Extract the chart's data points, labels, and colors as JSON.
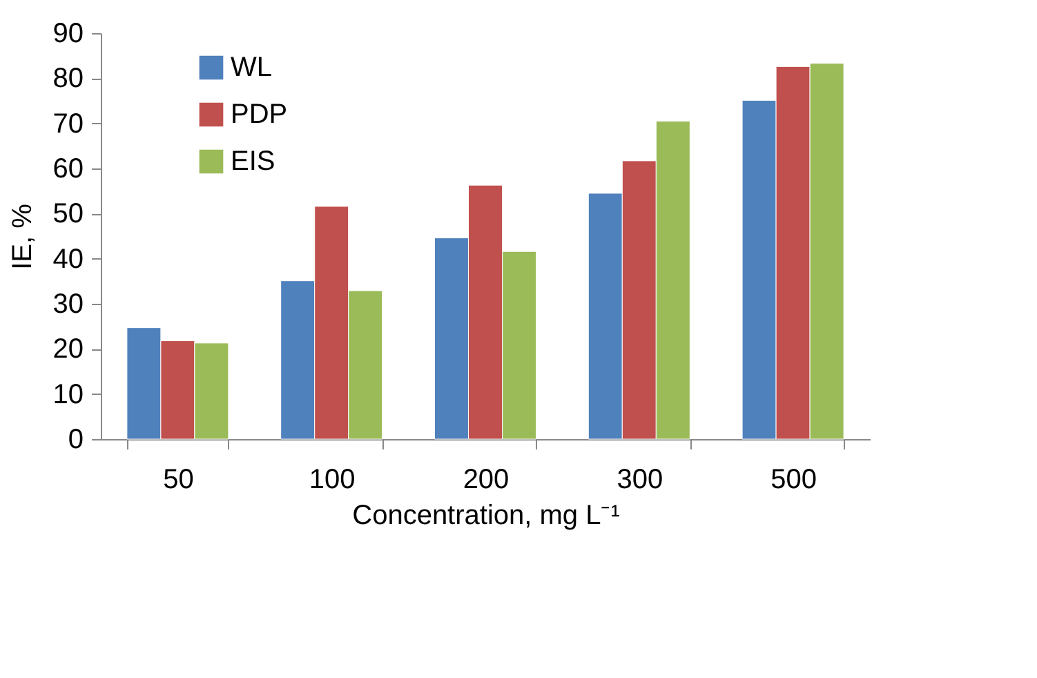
{
  "chart_data": {
    "type": "bar",
    "xlabel": "Concentration, mg L⁻¹",
    "ylabel": "IE, %",
    "categories": [
      "50",
      "100",
      "200",
      "300",
      "500"
    ],
    "series": [
      {
        "name": "WL",
        "color": "#4f81bd",
        "values": [
          24.7,
          35.1,
          44.6,
          54.5,
          75.1
        ]
      },
      {
        "name": "PDP",
        "color": "#c0504d",
        "values": [
          21.8,
          51.6,
          56.3,
          61.7,
          82.6
        ]
      },
      {
        "name": "EIS",
        "color": "#9bbb59",
        "values": [
          21.3,
          32.9,
          41.6,
          70.5,
          83.3
        ]
      }
    ],
    "ylim": [
      0,
      90
    ],
    "yticks": [
      0,
      10,
      20,
      30,
      40,
      50,
      60,
      70,
      80,
      90
    ],
    "grid": false,
    "legend": "top left"
  }
}
